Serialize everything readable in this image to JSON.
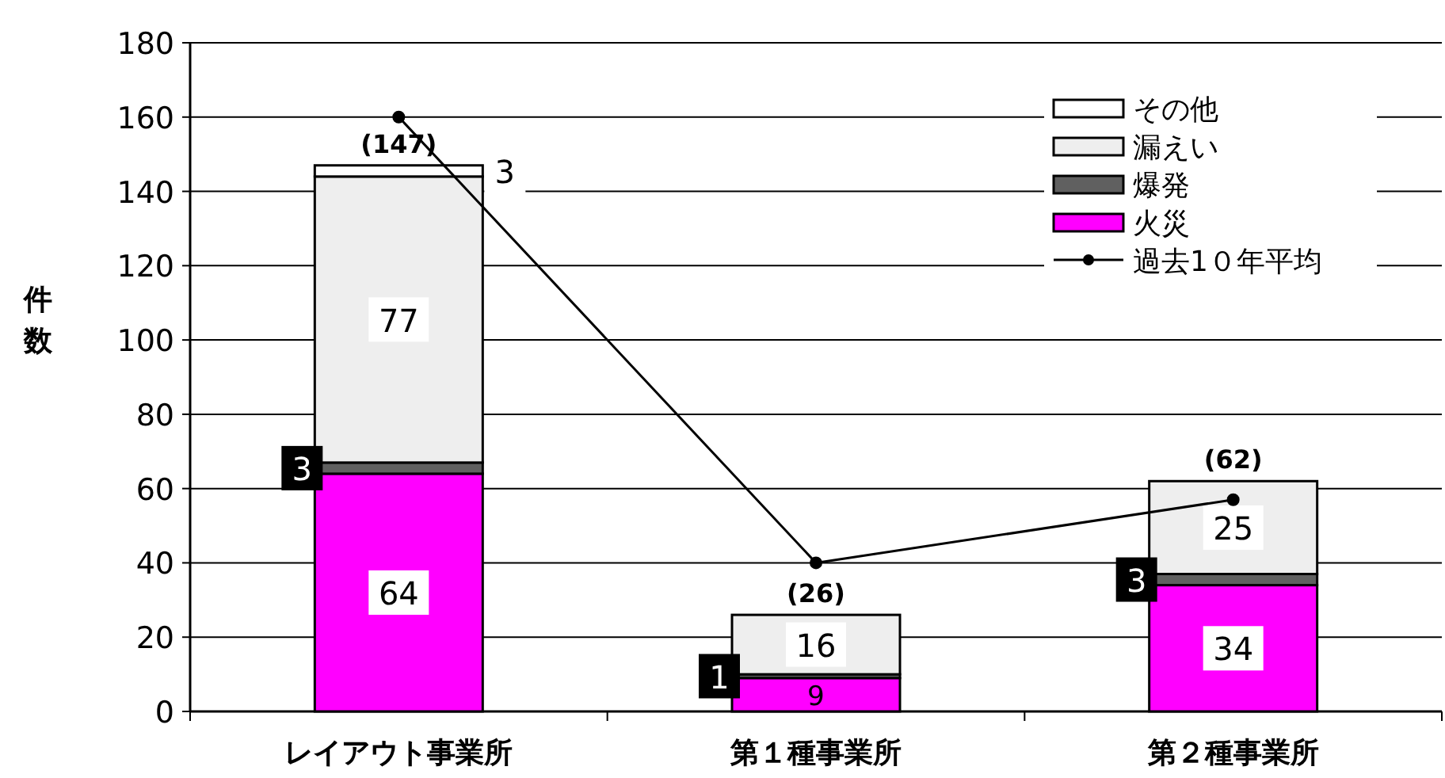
{
  "chart_data": {
    "type": "bar",
    "stacked": true,
    "ylabel": "件数",
    "categories": [
      "レイアウト事業所",
      "第１種事業所",
      "第２種事業所"
    ],
    "ylim": [
      0,
      180
    ],
    "yticks": [
      0,
      20,
      40,
      60,
      80,
      100,
      120,
      140,
      160,
      180
    ],
    "grid": "y",
    "legend": "top right",
    "series": [
      {
        "name": "火災",
        "color": "#ff00ff",
        "values": [
          64,
          9,
          34
        ],
        "value_labels": [
          "64",
          "9",
          "34"
        ]
      },
      {
        "name": "爆発",
        "color": "#606060",
        "values": [
          3,
          1,
          3
        ],
        "value_labels": [
          "3",
          "1",
          "3"
        ]
      },
      {
        "name": "漏えい",
        "color": "#eeeeee",
        "values": [
          77,
          16,
          25
        ],
        "value_labels": [
          "77",
          "16",
          "25"
        ]
      },
      {
        "name": "その他",
        "color": "#ffffff",
        "values": [
          3,
          0,
          0
        ],
        "value_labels": [
          "3",
          null,
          null
        ]
      },
      {
        "name": "過去1０年平均",
        "type": "line",
        "color": "#000000",
        "marker": "circle",
        "values": [
          160,
          40,
          57
        ]
      }
    ],
    "totals": [
      "(147)",
      "(26)",
      "(62)"
    ]
  }
}
